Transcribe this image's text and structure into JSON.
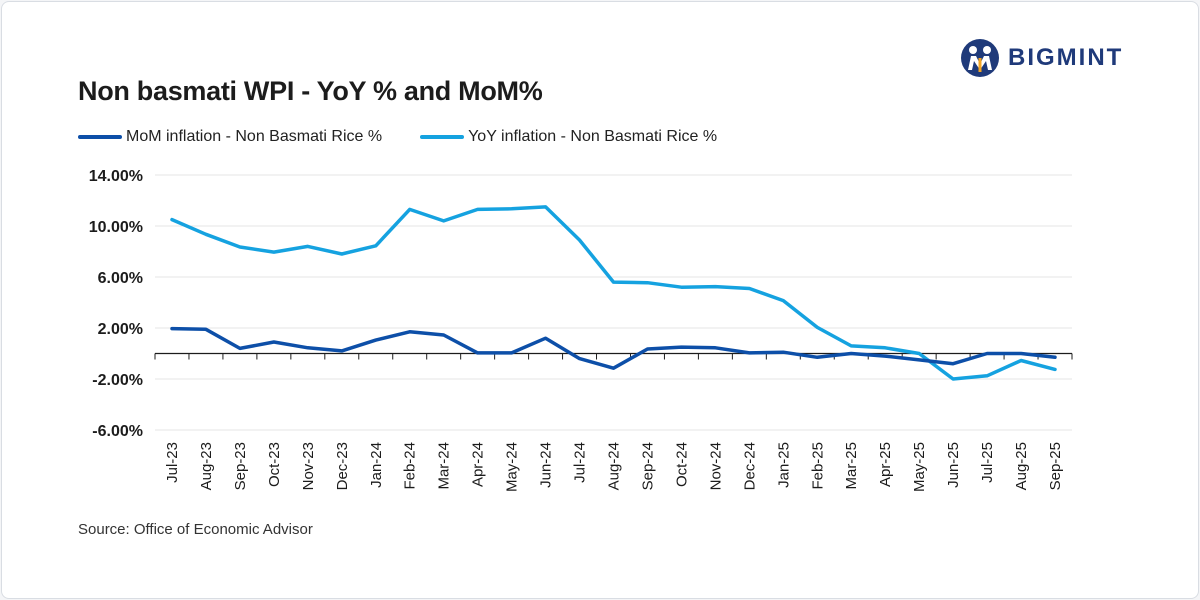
{
  "brand": {
    "name": "BIGMINT",
    "color": "#1f3a7a"
  },
  "source": "Source: Office of Economic Advisor",
  "chart_data": {
    "type": "line",
    "title": "Non basmati WPI - YoY % and MoM%",
    "xlabel": "",
    "ylabel": "",
    "ylim": [
      -6,
      14
    ],
    "yticks": [
      14,
      10,
      6,
      2,
      -2,
      -6
    ],
    "ytick_labels": [
      "14.00%",
      "10.00%",
      "6.00%",
      "2.00%",
      "-2.00%",
      "-6.00%"
    ],
    "grid": true,
    "legend_position": "top-left",
    "categories": [
      "Jul-23",
      "Aug-23",
      "Sep-23",
      "Oct-23",
      "Nov-23",
      "Dec-23",
      "Jan-24",
      "Feb-24",
      "Mar-24",
      "Apr-24",
      "May-24",
      "Jun-24",
      "Jul-24",
      "Aug-24",
      "Sep-24",
      "Oct-24",
      "Nov-24",
      "Dec-24",
      "Jan-25",
      "Feb-25",
      "Mar-25",
      "Apr-25",
      "May-25",
      "Jun-25",
      "Jul-25",
      "Aug-25",
      "Sep-25"
    ],
    "series": [
      {
        "name": "MoM inflation - Non Basmati Rice %",
        "color": "#0d4fa8",
        "values": [
          1.95,
          1.9,
          0.4,
          0.9,
          0.45,
          0.2,
          1.05,
          1.7,
          1.45,
          0.05,
          0.05,
          1.2,
          -0.4,
          -1.15,
          0.35,
          0.5,
          0.45,
          0.05,
          0.1,
          -0.3,
          0.0,
          -0.2,
          -0.5,
          -0.8,
          0.0,
          0.0,
          -0.3
        ]
      },
      {
        "name": "YoY inflation - Non Basmati Rice %",
        "color": "#15a2e0",
        "values": [
          10.5,
          9.35,
          8.35,
          7.95,
          8.4,
          7.8,
          8.45,
          11.3,
          10.4,
          11.3,
          11.35,
          11.5,
          8.9,
          5.6,
          5.55,
          5.2,
          5.25,
          5.1,
          4.15,
          2.05,
          0.6,
          0.45,
          0.0,
          -2.0,
          -1.75,
          -0.55,
          -1.25
        ]
      }
    ]
  }
}
